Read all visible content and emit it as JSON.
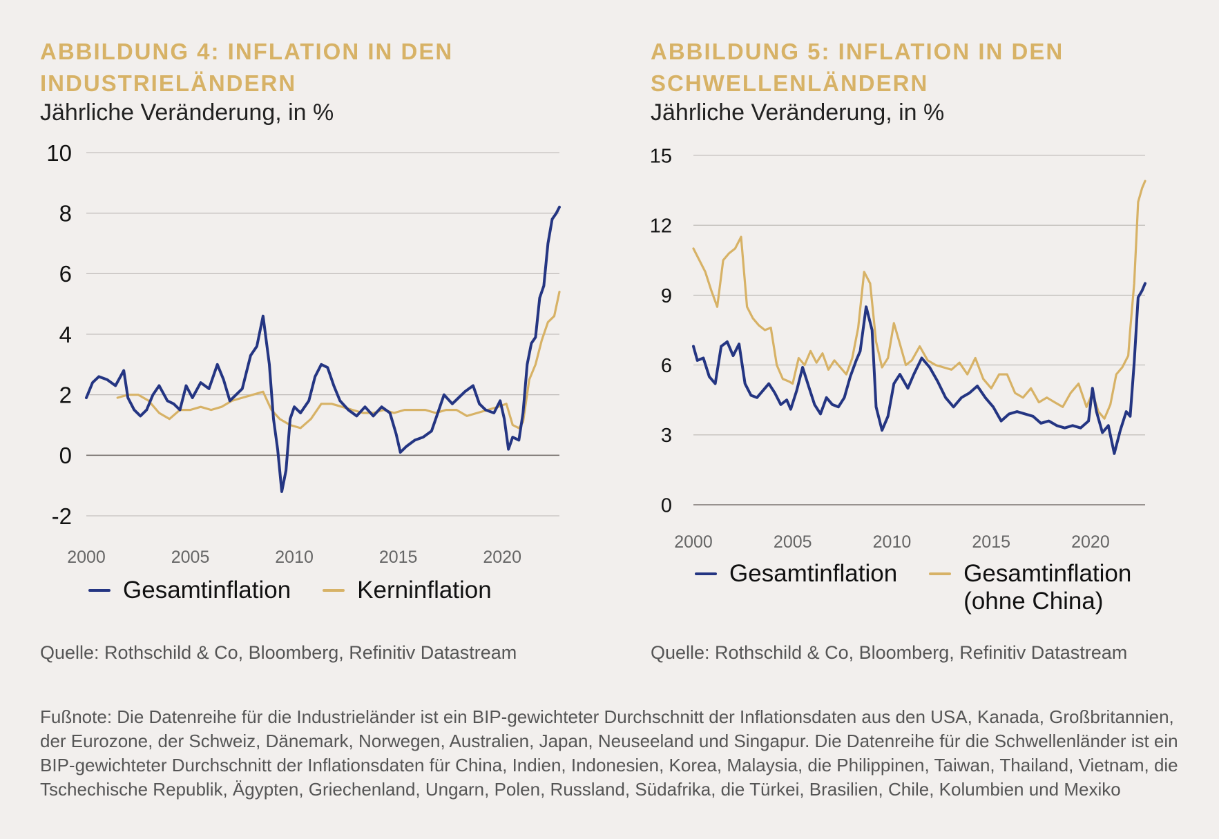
{
  "colors": {
    "navy": "#243582",
    "gold": "#d7b266",
    "background": "#f2efed",
    "grid": "#b9b5b2",
    "baseline": "#7a7470"
  },
  "panels": [
    {
      "title": "ABBILDUNG 4: INFLATION IN DEN INDUSTRIELÄNDERN",
      "subtitle": "Jährliche Veränderung, in %",
      "source": "Quelle: Rothschild & Co, Bloomberg, Refinitiv Datastream"
    },
    {
      "title": "ABBILDUNG 5: INFLATION IN DEN SCHWELLENLÄNDERN",
      "subtitle": "Jährliche Veränderung, in %",
      "source": "Quelle: Rothschild & Co, Bloomberg, Refinitiv Datastream"
    }
  ],
  "footnote": "Fußnote: Die Datenreihe für die Industrieländer ist ein BIP-gewichteter Durchschnitt der Inflationsdaten aus den USA, Kanada, Großbritannien, der Eurozone, der Schweiz, Dänemark, Norwegen, Australien, Japan, Neuseeland und Singapur. Die Datenreihe für die Schwellenländer ist ein BIP-gewichteter Durchschnitt der Inflationsdaten für China, Indien, Indonesien, Korea, Malaysia, die Philippinen, Taiwan, Thailand, Vietnam, die Tschechische Republik, Ägypten, Griechenland, Ungarn, Polen, Russland, Südafrika, die Türkei, Brasilien, Chile, Kolumbien und Mexiko",
  "chart_data": [
    {
      "type": "line",
      "title": "ABBILDUNG 4: INFLATION IN DEN INDUSTRIELÄNDERN",
      "subtitle": "Jährliche Veränderung, in %",
      "xlim": [
        2000,
        2022.75
      ],
      "ylim": [
        -2,
        10
      ],
      "x_ticks": [
        "2000",
        "2005",
        "2010",
        "2015",
        "2020"
      ],
      "y_ticks": [
        "-2",
        "0",
        "2",
        "4",
        "6",
        "8",
        "10"
      ],
      "grid": true,
      "legend_position": "bottom",
      "series": [
        {
          "name": "Gesamtinflation",
          "color": "#243582",
          "x": [
            2000,
            2000.3,
            2000.6,
            2001,
            2001.4,
            2001.8,
            2002,
            2002.3,
            2002.6,
            2002.9,
            2003.2,
            2003.5,
            2003.9,
            2004.2,
            2004.5,
            2004.8,
            2005.1,
            2005.5,
            2005.9,
            2006.3,
            2006.6,
            2006.9,
            2007.2,
            2007.5,
            2007.9,
            2008.2,
            2008.5,
            2008.8,
            2009,
            2009.2,
            2009.4,
            2009.6,
            2009.8,
            2010,
            2010.3,
            2010.7,
            2011,
            2011.3,
            2011.6,
            2011.9,
            2012.2,
            2012.6,
            2013,
            2013.4,
            2013.8,
            2014.2,
            2014.6,
            2014.9,
            2015.1,
            2015.4,
            2015.8,
            2016.2,
            2016.6,
            2016.9,
            2017.2,
            2017.6,
            2017.9,
            2018.2,
            2018.6,
            2018.9,
            2019.2,
            2019.6,
            2019.9,
            2020.1,
            2020.3,
            2020.5,
            2020.8,
            2021,
            2021.2,
            2021.4,
            2021.6,
            2021.8,
            2022,
            2022.2,
            2022.4,
            2022.6,
            2022.75
          ],
          "y": [
            1.9,
            2.4,
            2.6,
            2.5,
            2.3,
            2.8,
            1.9,
            1.5,
            1.3,
            1.5,
            2.0,
            2.3,
            1.8,
            1.7,
            1.5,
            2.3,
            1.9,
            2.4,
            2.2,
            3.0,
            2.5,
            1.8,
            2.0,
            2.2,
            3.3,
            3.6,
            4.6,
            3.0,
            1.2,
            0.2,
            -1.2,
            -0.5,
            1.2,
            1.6,
            1.4,
            1.8,
            2.6,
            3.0,
            2.9,
            2.3,
            1.8,
            1.5,
            1.3,
            1.6,
            1.3,
            1.6,
            1.4,
            0.7,
            0.1,
            0.3,
            0.5,
            0.6,
            0.8,
            1.4,
            2.0,
            1.7,
            1.9,
            2.1,
            2.3,
            1.7,
            1.5,
            1.4,
            1.8,
            1.2,
            0.2,
            0.6,
            0.5,
            1.4,
            3.0,
            3.7,
            3.9,
            5.2,
            5.6,
            7.0,
            7.8,
            8.0,
            8.2
          ]
        },
        {
          "name": "Kerninflation",
          "color": "#d7b266",
          "x": [
            2001.5,
            2002,
            2002.5,
            2003,
            2003.5,
            2004,
            2004.5,
            2005,
            2005.5,
            2006,
            2006.5,
            2007,
            2007.5,
            2008,
            2008.5,
            2008.9,
            2009.3,
            2009.8,
            2010.3,
            2010.8,
            2011.3,
            2011.8,
            2012.3,
            2012.8,
            2013.3,
            2013.8,
            2014.3,
            2014.8,
            2015.3,
            2015.8,
            2016.3,
            2016.8,
            2017.3,
            2017.8,
            2018.3,
            2018.8,
            2019.3,
            2019.8,
            2020.2,
            2020.5,
            2020.8,
            2021,
            2021.3,
            2021.6,
            2021.9,
            2022.2,
            2022.5,
            2022.75
          ],
          "y": [
            1.9,
            2.0,
            2.0,
            1.8,
            1.4,
            1.2,
            1.5,
            1.5,
            1.6,
            1.5,
            1.6,
            1.8,
            1.9,
            2.0,
            2.1,
            1.5,
            1.2,
            1.0,
            0.9,
            1.2,
            1.7,
            1.7,
            1.6,
            1.5,
            1.4,
            1.4,
            1.5,
            1.4,
            1.5,
            1.5,
            1.5,
            1.4,
            1.5,
            1.5,
            1.3,
            1.4,
            1.5,
            1.6,
            1.7,
            1.0,
            0.9,
            1.1,
            2.5,
            3.0,
            3.8,
            4.4,
            4.6,
            5.4
          ]
        }
      ]
    },
    {
      "type": "line",
      "title": "ABBILDUNG 5: INFLATION IN DEN SCHWELLENLÄNDERN",
      "subtitle": "Jährliche Veränderung, in %",
      "xlim": [
        2000,
        2022.75
      ],
      "ylim": [
        0,
        15
      ],
      "x_ticks": [
        "2000",
        "2005",
        "2010",
        "2015",
        "2020"
      ],
      "y_ticks": [
        "0",
        "3",
        "6",
        "9",
        "12",
        "15"
      ],
      "grid": true,
      "legend_position": "bottom",
      "series": [
        {
          "name": "Gesamtinflation",
          "color": "#243582",
          "x": [
            2000,
            2000.2,
            2000.5,
            2000.8,
            2001.1,
            2001.4,
            2001.7,
            2002,
            2002.3,
            2002.6,
            2002.9,
            2003.2,
            2003.5,
            2003.8,
            2004.1,
            2004.4,
            2004.7,
            2004.9,
            2005.2,
            2005.5,
            2005.8,
            2006.1,
            2006.4,
            2006.7,
            2007,
            2007.3,
            2007.6,
            2007.9,
            2008.2,
            2008.4,
            2008.7,
            2009,
            2009.2,
            2009.5,
            2009.8,
            2010.1,
            2010.4,
            2010.8,
            2011.1,
            2011.5,
            2011.9,
            2012.3,
            2012.7,
            2013.1,
            2013.5,
            2013.9,
            2014.3,
            2014.7,
            2015.1,
            2015.5,
            2015.9,
            2016.3,
            2016.7,
            2017.1,
            2017.5,
            2017.9,
            2018.3,
            2018.7,
            2019.1,
            2019.5,
            2019.9,
            2020.1,
            2020.3,
            2020.6,
            2020.9,
            2021.2,
            2021.5,
            2021.8,
            2022,
            2022.2,
            2022.4,
            2022.6,
            2022.75
          ],
          "y": [
            6.8,
            6.2,
            6.3,
            5.5,
            5.2,
            6.8,
            7.0,
            6.4,
            6.9,
            5.2,
            4.7,
            4.6,
            4.9,
            5.2,
            4.8,
            4.3,
            4.5,
            4.1,
            4.9,
            5.9,
            5.1,
            4.3,
            3.9,
            4.6,
            4.3,
            4.2,
            4.6,
            5.5,
            6.2,
            6.6,
            8.5,
            7.5,
            4.2,
            3.2,
            3.8,
            5.2,
            5.6,
            5.0,
            5.6,
            6.3,
            5.9,
            5.3,
            4.6,
            4.2,
            4.6,
            4.8,
            5.1,
            4.6,
            4.2,
            3.6,
            3.9,
            4.0,
            3.9,
            3.8,
            3.5,
            3.6,
            3.4,
            3.3,
            3.4,
            3.3,
            3.6,
            5.0,
            4.0,
            3.1,
            3.4,
            2.2,
            3.2,
            4.0,
            3.8,
            6.1,
            8.9,
            9.2,
            9.5
          ]
        },
        {
          "name": "Gesamtinflation (ohne China)",
          "color": "#d7b266",
          "x": [
            2000,
            2000.3,
            2000.6,
            2000.9,
            2001.2,
            2001.5,
            2001.8,
            2002.1,
            2002.4,
            2002.7,
            2003,
            2003.3,
            2003.6,
            2003.9,
            2004.2,
            2004.5,
            2004.8,
            2005,
            2005.3,
            2005.6,
            2005.9,
            2006.2,
            2006.5,
            2006.8,
            2007.1,
            2007.4,
            2007.7,
            2008,
            2008.3,
            2008.6,
            2008.9,
            2009.2,
            2009.5,
            2009.8,
            2010.1,
            2010.4,
            2010.7,
            2011,
            2011.4,
            2011.8,
            2012.2,
            2012.6,
            2013,
            2013.4,
            2013.8,
            2014.2,
            2014.6,
            2015,
            2015.4,
            2015.8,
            2016.2,
            2016.6,
            2017,
            2017.4,
            2017.8,
            2018.2,
            2018.6,
            2019,
            2019.4,
            2019.8,
            2020.1,
            2020.4,
            2020.7,
            2021,
            2021.3,
            2021.6,
            2021.9,
            2022,
            2022.2,
            2022.4,
            2022.6,
            2022.75
          ],
          "y": [
            11.0,
            10.5,
            10.0,
            9.2,
            8.5,
            10.5,
            10.8,
            11.0,
            11.5,
            8.5,
            8.0,
            7.7,
            7.5,
            7.6,
            6.0,
            5.4,
            5.3,
            5.2,
            6.3,
            6.0,
            6.6,
            6.1,
            6.5,
            5.8,
            6.2,
            5.9,
            5.6,
            6.3,
            7.6,
            10.0,
            9.5,
            7.0,
            5.9,
            6.3,
            7.8,
            6.9,
            6.0,
            6.2,
            6.8,
            6.2,
            6.0,
            5.9,
            5.8,
            6.1,
            5.6,
            6.3,
            5.4,
            5.0,
            5.6,
            5.6,
            4.8,
            4.6,
            5.0,
            4.4,
            4.6,
            4.4,
            4.2,
            4.8,
            5.2,
            4.2,
            4.8,
            4.0,
            3.7,
            4.3,
            5.6,
            5.9,
            6.4,
            7.5,
            9.5,
            13.0,
            13.6,
            13.9
          ]
        }
      ]
    }
  ]
}
